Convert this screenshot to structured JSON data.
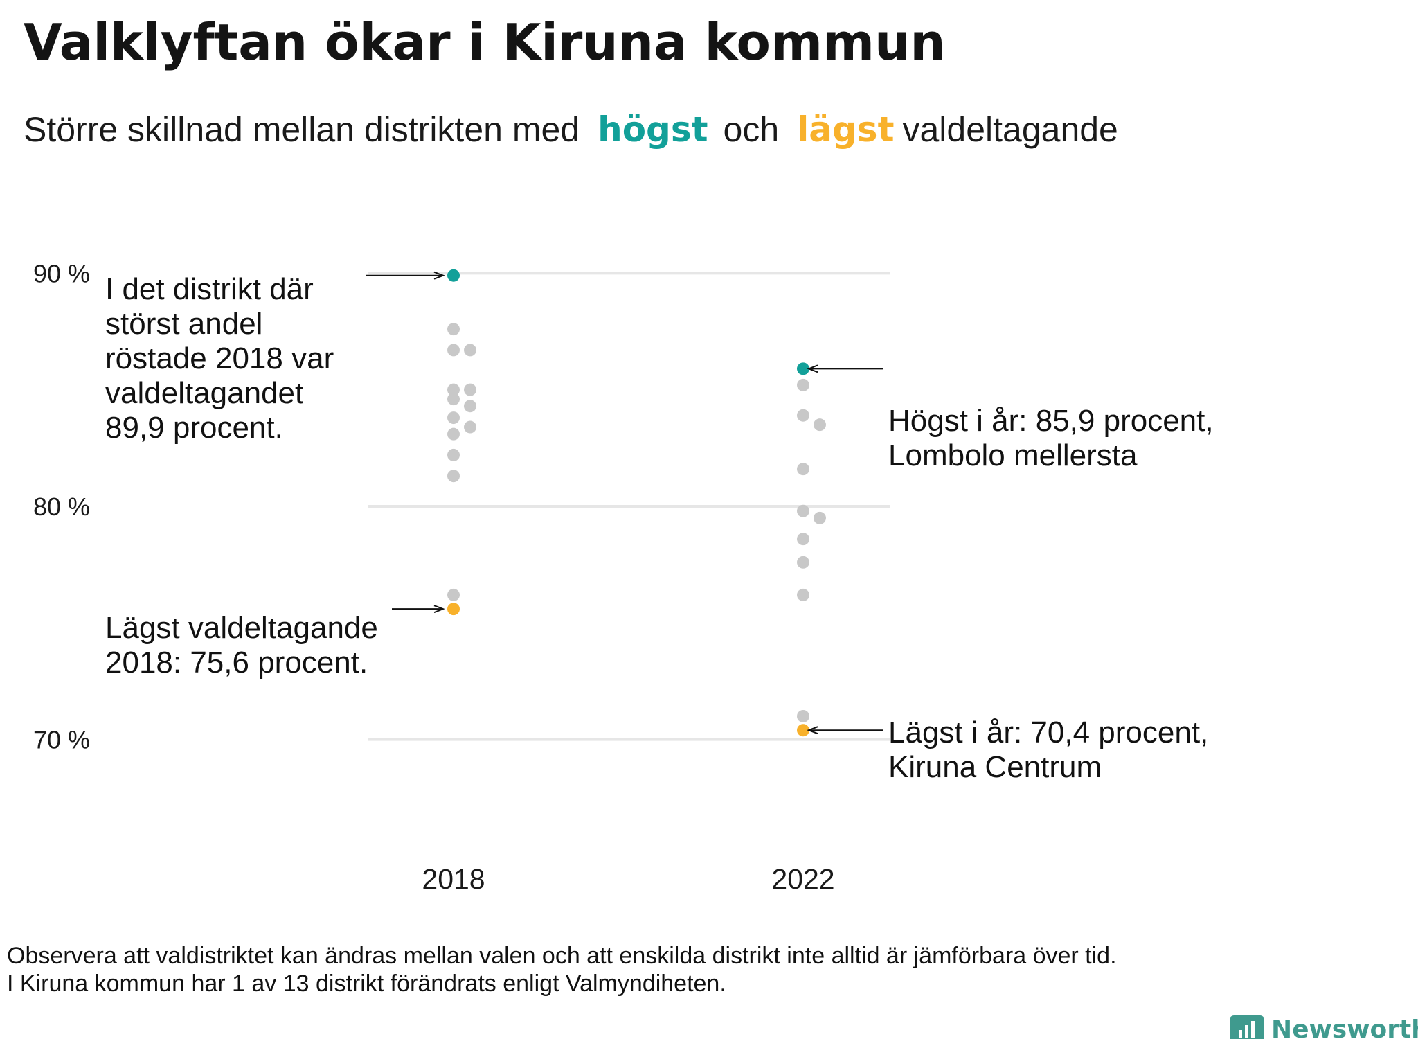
{
  "title": "Valklyftan ökar i Kiruna kommun",
  "subtitle": {
    "p1": "Större  skillnad  mellan  distrikten  med",
    "high": "högst",
    "mid": "och",
    "low": "lägst",
    "p2": "valdeltagande"
  },
  "colors": {
    "high": "#12a099",
    "low": "#f8b12b",
    "other": "#c8c8c8",
    "grid": "#e6e6e6",
    "text": "#1a1a1a",
    "brand": "#3f9a8e"
  },
  "chart_data": {
    "type": "scatter",
    "title": "Valklyftan ökar i Kiruna kommun",
    "xlabel": "",
    "ylabel": "",
    "categories": [
      "2018",
      "2022"
    ],
    "y_ticks": [
      "70 %",
      "80 %",
      "90 %"
    ],
    "ylim": [
      66,
      96
    ],
    "grid": true,
    "series": [
      {
        "name": "2018",
        "values": [
          89.9,
          87.6,
          86.7,
          86.7,
          85.0,
          85.0,
          84.6,
          84.3,
          83.8,
          83.4,
          83.1,
          82.2,
          81.3,
          76.2,
          75.6
        ]
      },
      {
        "name": "2022",
        "values": [
          85.9,
          85.2,
          83.9,
          83.5,
          81.6,
          79.8,
          79.5,
          78.6,
          77.6,
          76.2,
          71.0,
          70.4
        ]
      }
    ],
    "highest": [
      89.9,
      85.9
    ],
    "lowest": [
      75.6,
      70.4
    ]
  },
  "annotations": {
    "a2018_high": [
      "I det distrikt där",
      "störst andel",
      "röstade 2018 var",
      "valdeltagandet",
      "89,9 procent."
    ],
    "a2018_low": [
      "Lägst valdeltagande",
      "2018: 75,6 procent."
    ],
    "a2022_high": [
      "Högst i år: 85,9 procent,",
      "Lombolo mellersta"
    ],
    "a2022_low": [
      "Lägst i år: 70,4 procent,",
      "Kiruna Centrum"
    ]
  },
  "footnote": [
    "Observera att valdistriktet kan ändras mellan valen och att enskilda distrikt inte alltid är jämförbara över tid.",
    "I Kiruna kommun har 1 av 13 distrikt förändrats enligt Valmyndiheten."
  ],
  "brand": "Newsworthy",
  "brand_icon": "bar-chart-speech-icon"
}
